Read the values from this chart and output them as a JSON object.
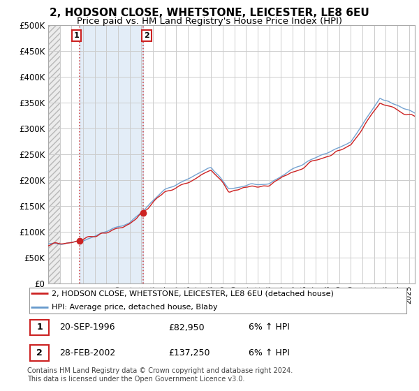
{
  "title": "2, HODSON CLOSE, WHETSTONE, LEICESTER, LE8 6EU",
  "subtitle": "Price paid vs. HM Land Registry's House Price Index (HPI)",
  "ylim": [
    0,
    500000
  ],
  "yticks": [
    0,
    50000,
    100000,
    150000,
    200000,
    250000,
    300000,
    350000,
    400000,
    450000,
    500000
  ],
  "background_color": "#ffffff",
  "grid_color": "#cccccc",
  "hpi_color": "#6699cc",
  "price_color": "#cc2222",
  "sale1_date_num": 1996.72,
  "sale1_price": 82950,
  "sale2_date_num": 2002.16,
  "sale2_price": 137250,
  "xstart": 1994.0,
  "xend": 2025.5,
  "legend_line1": "2, HODSON CLOSE, WHETSTONE, LEICESTER, LE8 6EU (detached house)",
  "legend_line2": "HPI: Average price, detached house, Blaby",
  "table_row1": [
    "1",
    "20-SEP-1996",
    "£82,950",
    "6% ↑ HPI"
  ],
  "table_row2": [
    "2",
    "28-FEB-2002",
    "£137,250",
    "6% ↑ HPI"
  ],
  "footnote": "Contains HM Land Registry data © Crown copyright and database right 2024.\nThis data is licensed under the Open Government Licence v3.0."
}
